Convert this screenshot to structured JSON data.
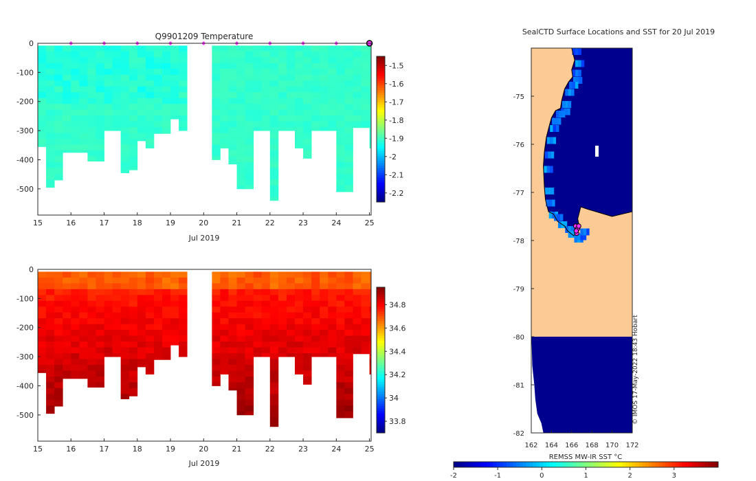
{
  "chart_data": [
    {
      "type": "heatmap",
      "id": "temperature",
      "title": "Q9901209  Temperature",
      "xlabel": "Jul 2019",
      "ylabel": "",
      "xlim": [
        15,
        25.05
      ],
      "ylim": [
        -590,
        0
      ],
      "xticks": [
        15,
        16,
        17,
        18,
        19,
        20,
        21,
        22,
        23,
        24,
        25
      ],
      "yticks": [
        0,
        -100,
        -200,
        -300,
        -400,
        -500
      ],
      "colorbar": {
        "min": -2.25,
        "max": -1.45,
        "ticks": [
          -1.5,
          -1.6,
          -1.7,
          -1.8,
          -1.9,
          -2,
          -2.1,
          -2.2
        ]
      },
      "profile_depths": [
        [
          15.0,
          355
        ],
        [
          15.25,
          495
        ],
        [
          15.5,
          470
        ],
        [
          15.75,
          375
        ],
        [
          16.0,
          375
        ],
        [
          16.25,
          375
        ],
        [
          16.5,
          405
        ],
        [
          16.75,
          405
        ],
        [
          17.0,
          300
        ],
        [
          17.25,
          300
        ],
        [
          17.5,
          445
        ],
        [
          17.75,
          435
        ],
        [
          18.0,
          335
        ],
        [
          18.25,
          360
        ],
        [
          18.5,
          310
        ],
        [
          18.75,
          310
        ],
        [
          19.0,
          260
        ],
        [
          19.25,
          300
        ],
        [
          20.25,
          400
        ],
        [
          20.5,
          360
        ],
        [
          20.75,
          415
        ],
        [
          21.0,
          500
        ],
        [
          21.25,
          500
        ],
        [
          21.5,
          300
        ],
        [
          21.75,
          300
        ],
        [
          22.0,
          540
        ],
        [
          22.25,
          300
        ],
        [
          22.5,
          300
        ],
        [
          22.75,
          360
        ],
        [
          23.0,
          395
        ],
        [
          23.25,
          300
        ],
        [
          23.5,
          300
        ],
        [
          23.75,
          300
        ],
        [
          24.0,
          510
        ],
        [
          24.25,
          510
        ],
        [
          24.5,
          290
        ],
        [
          24.75,
          290
        ],
        [
          25.0,
          360
        ]
      ],
      "surface_markers_x": [
        16,
        17,
        18,
        19,
        20,
        21,
        22,
        23,
        24,
        25
      ],
      "gap": [
        19.6,
        20.2
      ]
    },
    {
      "type": "heatmap",
      "id": "salinity",
      "title": "",
      "xlabel": "Jul 2019",
      "ylabel": "",
      "xlim": [
        15,
        25.05
      ],
      "ylim": [
        -590,
        0
      ],
      "xticks": [
        15,
        16,
        17,
        18,
        19,
        20,
        21,
        22,
        23,
        24,
        25
      ],
      "yticks": [
        0,
        -100,
        -200,
        -300,
        -400,
        -500
      ],
      "colorbar": {
        "min": 33.7,
        "max": 34.95,
        "ticks": [
          34.8,
          34.6,
          34.4,
          34.2,
          34,
          33.8
        ]
      }
    },
    {
      "type": "heatmap",
      "id": "sst_map",
      "title": "SealCTD Surface Locations and SST for 20 Jul 2019",
      "xlabel": "REMSS MW-IR SST °C",
      "xlim": [
        162,
        172
      ],
      "ylim": [
        -82,
        -74.0
      ],
      "xticks": [
        162,
        164,
        166,
        168,
        170,
        172
      ],
      "yticks": [
        -75,
        -76,
        -77,
        -78,
        -79,
        -80,
        -81,
        -82
      ],
      "colorbar": {
        "min": -2,
        "max": 4,
        "ticks": [
          -2,
          -1,
          0,
          1,
          2,
          3
        ]
      },
      "stamp": "© IMOS 17-May-2022 18:43 Hobart",
      "locations": [
        [
          166.4,
          -77.7
        ],
        [
          166.6,
          -77.75
        ],
        [
          166.5,
          -77.85
        ],
        [
          166.7,
          -77.7
        ],
        [
          166.45,
          -77.8
        ]
      ]
    }
  ],
  "colors": {
    "ocean": "#00008f",
    "ice_shelf": "#fccb95",
    "marker": "#ff30ff"
  }
}
